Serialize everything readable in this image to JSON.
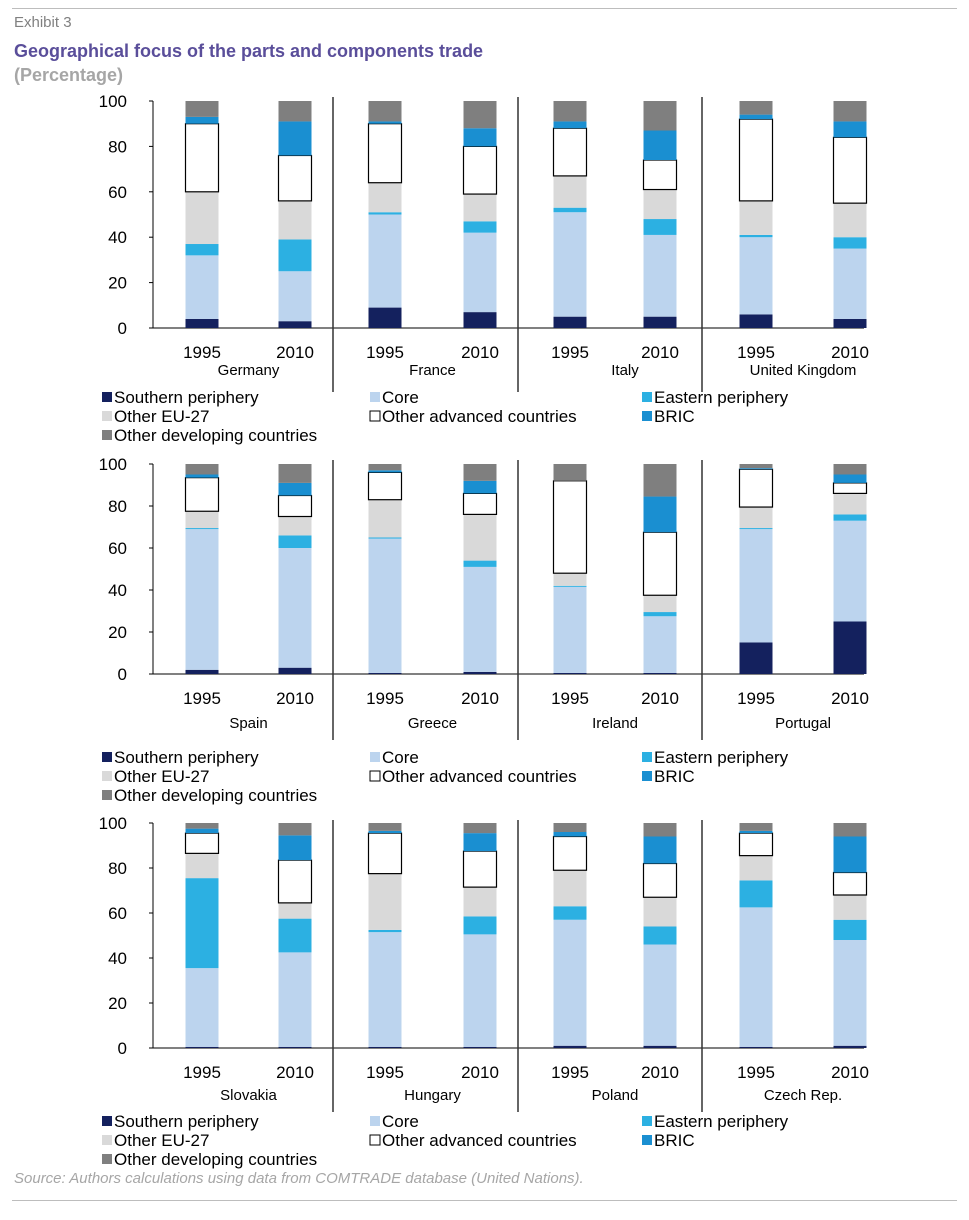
{
  "header": {
    "exhibit": "Exhibit 3",
    "title": "Geographical focus of the parts and components trade",
    "subtitle": "(Percentage)"
  },
  "footer": {
    "source": "Source: Authors calculations using data from COMTRADE database (United Nations)."
  },
  "colors": {
    "Southern periphery": "#14215e",
    "Core": "#bcd4ee",
    "Eastern periphery": "#2cb0e2",
    "Other EU-27": "#d9d9d9",
    "Other advanced countries": "#ffffff",
    "BRIC": "#1a8fd1",
    "Other developing countries": "#7f7f7f"
  },
  "chart_data": [
    {
      "type": "bar",
      "stacked": true,
      "ylim": [
        0,
        100
      ],
      "yticks": [
        "0",
        "20",
        "40",
        "60",
        "80",
        "100"
      ],
      "legend": "bottom",
      "legend_entries": [
        "Southern periphery",
        "Core",
        "Eastern periphery",
        "Other EU-27",
        "Other advanced countries",
        "BRIC",
        "Other developing countries"
      ],
      "groups": [
        {
          "country": "Germany",
          "bars": [
            {
              "year": "1995",
              "values": [
                4,
                28,
                5,
                23,
                30,
                3,
                7
              ]
            },
            {
              "year": "2010",
              "values": [
                3,
                22,
                14,
                17,
                20,
                15,
                9
              ]
            }
          ]
        },
        {
          "country": "France",
          "bars": [
            {
              "year": "1995",
              "values": [
                9,
                41,
                1,
                13,
                26,
                1,
                9
              ]
            },
            {
              "year": "2010",
              "values": [
                7,
                35,
                5,
                12,
                21,
                8,
                12
              ]
            }
          ]
        },
        {
          "country": "Italy",
          "bars": [
            {
              "year": "1995",
              "values": [
                5,
                46,
                2,
                14,
                21,
                3,
                9
              ]
            },
            {
              "year": "2010",
              "values": [
                5,
                36,
                7,
                13,
                13,
                13,
                13
              ]
            }
          ]
        },
        {
          "country": "United Kingdom",
          "bars": [
            {
              "year": "1995",
              "values": [
                6,
                34,
                1,
                15,
                36,
                2,
                6
              ]
            },
            {
              "year": "2010",
              "values": [
                4,
                31,
                5,
                15,
                29,
                7,
                9
              ]
            }
          ]
        }
      ]
    },
    {
      "type": "bar",
      "stacked": true,
      "ylim": [
        0,
        100
      ],
      "yticks": [
        "0",
        "20",
        "40",
        "60",
        "80",
        "100"
      ],
      "legend": "bottom",
      "legend_entries": [
        "Southern periphery",
        "Core",
        "Eastern periphery",
        "Other EU-27",
        "Other advanced countries",
        "BRIC",
        "Other developing countries"
      ],
      "groups": [
        {
          "country": "Spain",
          "bars": [
            {
              "year": "1995",
              "values": [
                2,
                67,
                0.5,
                8,
                16,
                1.5,
                5
              ]
            },
            {
              "year": "2010",
              "values": [
                3,
                57,
                6,
                9,
                10,
                6,
                9
              ]
            }
          ]
        },
        {
          "country": "Greece",
          "bars": [
            {
              "year": "1995",
              "values": [
                0.5,
                64,
                0.5,
                18,
                13,
                1,
                3
              ]
            },
            {
              "year": "2010",
              "values": [
                1,
                50,
                3,
                22,
                10,
                6,
                8
              ]
            }
          ]
        },
        {
          "country": "Ireland",
          "bars": [
            {
              "year": "1995",
              "values": [
                0.5,
                41,
                0.5,
                6,
                44,
                0,
                8
              ]
            },
            {
              "year": "2010",
              "values": [
                0.5,
                27,
                2,
                8,
                30,
                17,
                15.5
              ]
            }
          ]
        },
        {
          "country": "Portugal",
          "bars": [
            {
              "year": "1995",
              "values": [
                15,
                54,
                0.5,
                10,
                18,
                0.5,
                2
              ]
            },
            {
              "year": "2010",
              "values": [
                25,
                48,
                3,
                10,
                5,
                4,
                5
              ]
            }
          ]
        }
      ]
    },
    {
      "type": "bar",
      "stacked": true,
      "ylim": [
        0,
        100
      ],
      "yticks": [
        "0",
        "20",
        "40",
        "60",
        "80",
        "100"
      ],
      "legend": "bottom",
      "legend_entries": [
        "Southern periphery",
        "Core",
        "Eastern periphery",
        "Other EU-27",
        "Other advanced countries",
        "BRIC",
        "Other developing countries"
      ],
      "groups": [
        {
          "country": "Slovakia",
          "bars": [
            {
              "year": "1995",
              "values": [
                0.5,
                35,
                40,
                11,
                9,
                2,
                2.5
              ]
            },
            {
              "year": "2010",
              "values": [
                0.5,
                42,
                15,
                7,
                19,
                11,
                5.5
              ]
            }
          ]
        },
        {
          "country": "Hungary",
          "bars": [
            {
              "year": "1995",
              "values": [
                0.5,
                51,
                1,
                25,
                18,
                1,
                3.5
              ]
            },
            {
              "year": "2010",
              "values": [
                0.5,
                50,
                8,
                13,
                16,
                8,
                4.5
              ]
            }
          ]
        },
        {
          "country": "Poland",
          "bars": [
            {
              "year": "1995",
              "values": [
                1,
                56,
                6,
                16,
                15,
                2,
                4
              ]
            },
            {
              "year": "2010",
              "values": [
                1,
                45,
                8,
                13,
                15,
                12,
                6
              ]
            }
          ]
        },
        {
          "country": "Czech Rep.",
          "bars": [
            {
              "year": "1995",
              "values": [
                0.5,
                62,
                12,
                11,
                10,
                1,
                3.5
              ]
            },
            {
              "year": "2010",
              "values": [
                1,
                47,
                9,
                11,
                10,
                16,
                6
              ]
            }
          ]
        }
      ]
    }
  ]
}
